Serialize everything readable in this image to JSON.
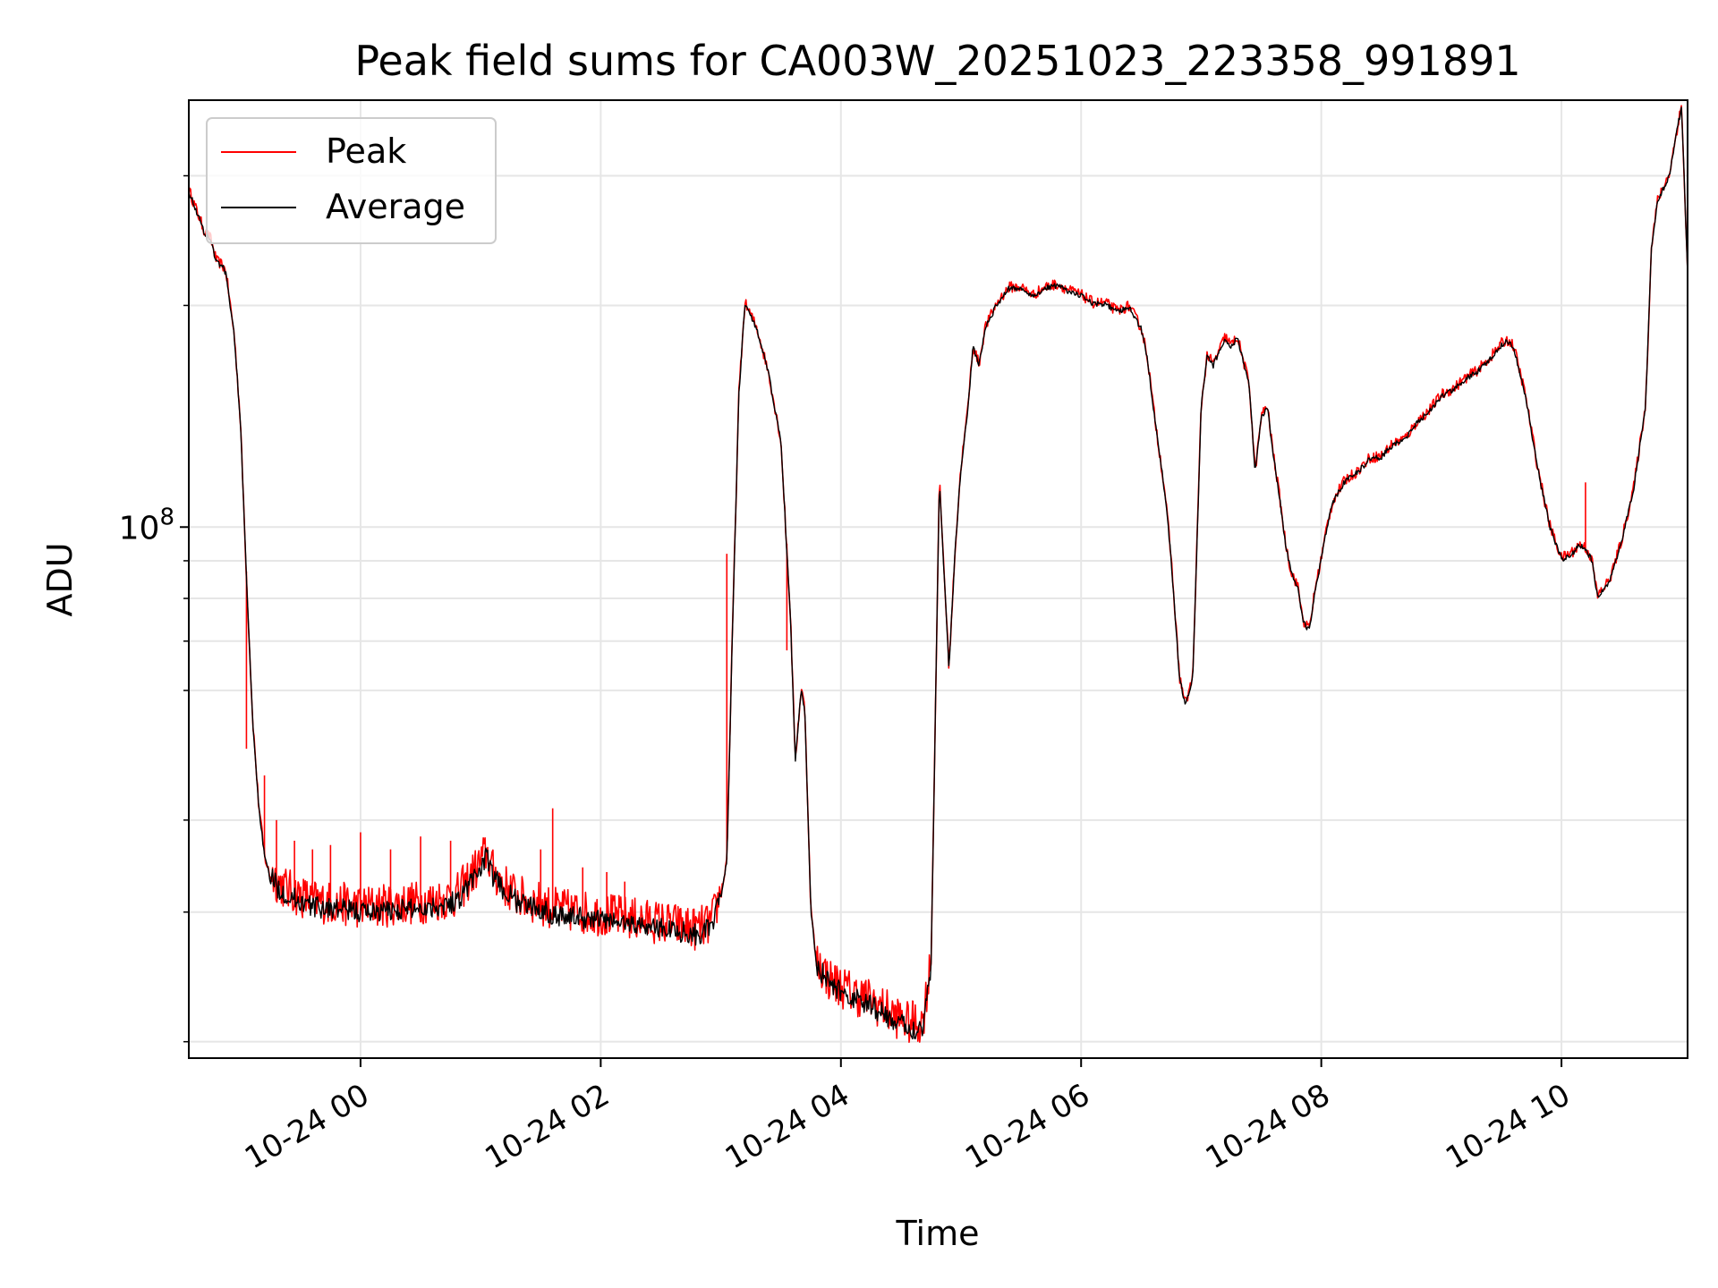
{
  "chart_data": {
    "type": "line",
    "title": "Peak field sums for CA003W_20251023_223358_991891",
    "xlabel": "Time",
    "ylabel": "ADU",
    "yscale": "log",
    "grid": true,
    "legend_position": "top-left",
    "x_unit": "hours since 2025-10-24 00:00",
    "xlim": [
      -1.43,
      11.05
    ],
    "ylim": [
      19000000,
      380000000
    ],
    "x_ticks": [
      {
        "value": 0,
        "label": "10-24 00"
      },
      {
        "value": 2,
        "label": "10-24 02"
      },
      {
        "value": 4,
        "label": "10-24 04"
      },
      {
        "value": 6,
        "label": "10-24 06"
      },
      {
        "value": 8,
        "label": "10-24 08"
      },
      {
        "value": 10,
        "label": "10-24 10"
      }
    ],
    "y_major_ticks": [
      {
        "value": 100000000,
        "base": "10",
        "exponent": "8"
      }
    ],
    "y_minor_ticks": [
      20000000,
      30000000,
      40000000,
      60000000,
      70000000,
      80000000,
      90000000,
      200000000,
      300000000
    ],
    "series": [
      {
        "name": "Peak",
        "color": "#ff0000",
        "noise": 0.06,
        "spikes": [
          [
            -0.95,
            50000000
          ],
          [
            -0.8,
            46000000
          ],
          [
            -0.7,
            40000000
          ],
          [
            -0.55,
            37500000
          ],
          [
            -0.4,
            36500000
          ],
          [
            -0.25,
            37000000
          ],
          [
            0.0,
            38500000
          ],
          [
            0.25,
            36500000
          ],
          [
            0.5,
            38000000
          ],
          [
            0.75,
            37500000
          ],
          [
            1.5,
            36500000
          ],
          [
            1.6,
            41500000
          ],
          [
            1.85,
            34500000
          ],
          [
            2.05,
            34000000
          ],
          [
            2.2,
            33000000
          ],
          [
            3.05,
            92000000
          ],
          [
            3.55,
            68000000
          ],
          [
            3.95,
            23500000
          ],
          [
            4.15,
            22000000
          ],
          [
            4.3,
            21000000
          ],
          [
            4.45,
            21000000
          ],
          [
            4.6,
            21000000
          ],
          [
            10.2,
            115000000
          ]
        ]
      },
      {
        "name": "Average",
        "color": "#000000",
        "noise": 0.03
      }
    ],
    "x": [
      -1.43,
      -1.3,
      -1.25,
      -1.2,
      -1.15,
      -1.12,
      -1.05,
      -1.0,
      -0.95,
      -0.9,
      -0.85,
      -0.8,
      -0.75,
      -0.7,
      -0.6,
      -0.5,
      -0.4,
      -0.2,
      0.0,
      0.2,
      0.4,
      0.6,
      0.8,
      0.98,
      1.05,
      1.1,
      1.2,
      1.3,
      1.4,
      1.5,
      1.6,
      1.8,
      2.0,
      2.2,
      2.4,
      2.6,
      2.8,
      2.92,
      2.98,
      3.05,
      3.1,
      3.15,
      3.2,
      3.3,
      3.4,
      3.5,
      3.58,
      3.62,
      3.67,
      3.7,
      3.75,
      3.8,
      3.9,
      4.0,
      4.1,
      4.25,
      4.4,
      4.55,
      4.68,
      4.75,
      4.82,
      4.9,
      4.95,
      5.0,
      5.05,
      5.1,
      5.15,
      5.2,
      5.3,
      5.4,
      5.5,
      5.6,
      5.7,
      5.8,
      5.9,
      6.0,
      6.1,
      6.2,
      6.3,
      6.4,
      6.5,
      6.55,
      6.6,
      6.7,
      6.75,
      6.82,
      6.87,
      6.93,
      7.0,
      7.05,
      7.1,
      7.2,
      7.25,
      7.3,
      7.4,
      7.45,
      7.5,
      7.55,
      7.6,
      7.65,
      7.7,
      7.75,
      7.8,
      7.85,
      7.9,
      7.95,
      8.0,
      8.05,
      8.1,
      8.2,
      8.3,
      8.4,
      8.5,
      8.6,
      8.7,
      8.8,
      8.9,
      9.0,
      9.1,
      9.2,
      9.3,
      9.4,
      9.5,
      9.55,
      9.6,
      9.7,
      9.8,
      9.9,
      10.0,
      10.05,
      10.1,
      10.15,
      10.2,
      10.25,
      10.3,
      10.4,
      10.5,
      10.6,
      10.7,
      10.75,
      10.8,
      10.9,
      10.97,
      11.0,
      11.05
    ],
    "values": [
      285000000,
      250000000,
      245000000,
      228000000,
      225000000,
      220000000,
      180000000,
      138000000,
      85000000,
      55000000,
      42000000,
      35500000,
      33000000,
      32000000,
      31000000,
      30500000,
      30000000,
      29800000,
      29500000,
      29600000,
      29800000,
      30000000,
      30500000,
      33500000,
      35000000,
      33000000,
      31500000,
      30500000,
      30000000,
      29800000,
      29300000,
      29000000,
      28800000,
      28500000,
      28200000,
      27900000,
      27500000,
      28000000,
      30000000,
      35000000,
      75000000,
      150000000,
      200000000,
      185000000,
      160000000,
      130000000,
      75000000,
      48000000,
      60000000,
      56000000,
      30000000,
      25000000,
      23500000,
      23000000,
      22500000,
      22000000,
      21200000,
      20500000,
      20500000,
      25000000,
      115000000,
      64000000,
      92000000,
      120000000,
      140000000,
      175000000,
      165000000,
      185000000,
      200000000,
      210000000,
      210000000,
      205000000,
      210000000,
      212000000,
      208000000,
      205000000,
      200000000,
      200000000,
      195000000,
      198000000,
      185000000,
      170000000,
      145000000,
      110000000,
      90000000,
      62000000,
      57000000,
      62000000,
      145000000,
      170000000,
      165000000,
      180000000,
      175000000,
      180000000,
      155000000,
      118000000,
      140000000,
      145000000,
      125000000,
      110000000,
      95000000,
      86000000,
      83000000,
      74000000,
      72000000,
      82000000,
      90000000,
      100000000,
      108000000,
      115000000,
      118000000,
      123000000,
      124000000,
      129000000,
      131000000,
      138000000,
      143000000,
      150000000,
      153000000,
      158000000,
      162000000,
      168000000,
      176000000,
      178000000,
      175000000,
      150000000,
      120000000,
      100000000,
      90000000,
      91000000,
      92000000,
      94000000,
      93000000,
      90000000,
      80000000,
      84000000,
      95000000,
      112000000,
      145000000,
      240000000,
      275000000,
      300000000,
      350000000,
      370000000,
      220000000
    ]
  }
}
